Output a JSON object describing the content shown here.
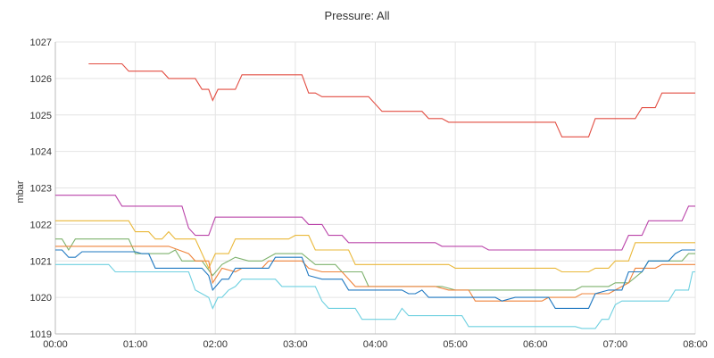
{
  "panel": {
    "title": "Pressure: All"
  },
  "chart_data": {
    "type": "line",
    "title": "Pressure: All",
    "xlabel": "",
    "ylabel": "mbar",
    "x_ticks": [
      "00:00",
      "01:00",
      "02:00",
      "03:00",
      "04:00",
      "05:00",
      "06:00",
      "07:00",
      "08:00"
    ],
    "y_ticks": [
      1019,
      1020,
      1021,
      1022,
      1023,
      1024,
      1025,
      1026,
      1027
    ],
    "xlim": [
      "00:00",
      "08:00"
    ],
    "ylim": [
      1019,
      1027
    ],
    "grid": true,
    "legend": "none",
    "series": [
      {
        "color": "#e24d42",
        "points": [
          [
            "00:25",
            1026.4
          ],
          [
            "00:50",
            1026.4
          ],
          [
            "00:55",
            1026.2
          ],
          [
            "01:20",
            1026.2
          ],
          [
            "01:25",
            1026.0
          ],
          [
            "01:45",
            1026.0
          ],
          [
            "01:50",
            1025.7
          ],
          [
            "01:55",
            1025.7
          ],
          [
            "01:58",
            1025.4
          ],
          [
            "02:02",
            1025.7
          ],
          [
            "02:15",
            1025.7
          ],
          [
            "02:20",
            1026.1
          ],
          [
            "03:05",
            1026.1
          ],
          [
            "03:10",
            1025.6
          ],
          [
            "03:15",
            1025.6
          ],
          [
            "03:20",
            1025.5
          ],
          [
            "03:40",
            1025.5
          ],
          [
            "03:55",
            1025.5
          ],
          [
            "04:05",
            1025.1
          ],
          [
            "04:35",
            1025.1
          ],
          [
            "04:40",
            1024.9
          ],
          [
            "04:50",
            1024.9
          ],
          [
            "04:55",
            1024.8
          ],
          [
            "06:15",
            1024.8
          ],
          [
            "06:20",
            1024.4
          ],
          [
            "06:40",
            1024.4
          ],
          [
            "06:45",
            1024.9
          ],
          [
            "07:15",
            1024.9
          ],
          [
            "07:20",
            1025.2
          ],
          [
            "07:30",
            1025.2
          ],
          [
            "07:35",
            1025.6
          ],
          [
            "08:00",
            1025.6
          ]
        ]
      },
      {
        "color": "#ba43a9",
        "points": [
          [
            "00:00",
            1022.8
          ],
          [
            "00:45",
            1022.8
          ],
          [
            "00:50",
            1022.5
          ],
          [
            "01:35",
            1022.5
          ],
          [
            "01:40",
            1021.9
          ],
          [
            "01:45",
            1021.7
          ],
          [
            "01:55",
            1021.7
          ],
          [
            "02:00",
            1022.2
          ],
          [
            "03:05",
            1022.2
          ],
          [
            "03:10",
            1022.0
          ],
          [
            "03:20",
            1022.0
          ],
          [
            "03:25",
            1021.7
          ],
          [
            "03:35",
            1021.7
          ],
          [
            "03:40",
            1021.5
          ],
          [
            "04:45",
            1021.5
          ],
          [
            "04:50",
            1021.4
          ],
          [
            "05:20",
            1021.4
          ],
          [
            "05:25",
            1021.3
          ],
          [
            "06:55",
            1021.3
          ],
          [
            "07:05",
            1021.3
          ],
          [
            "07:10",
            1021.7
          ],
          [
            "07:20",
            1021.7
          ],
          [
            "07:25",
            1022.1
          ],
          [
            "07:50",
            1022.1
          ],
          [
            "07:55",
            1022.5
          ],
          [
            "08:00",
            1022.5
          ]
        ]
      },
      {
        "color": "#eab839",
        "points": [
          [
            "00:00",
            1022.1
          ],
          [
            "00:55",
            1022.1
          ],
          [
            "01:00",
            1021.8
          ],
          [
            "01:10",
            1021.8
          ],
          [
            "01:15",
            1021.6
          ],
          [
            "01:20",
            1021.6
          ],
          [
            "01:25",
            1021.8
          ],
          [
            "01:30",
            1021.6
          ],
          [
            "01:45",
            1021.6
          ],
          [
            "01:55",
            1020.8
          ],
          [
            "02:00",
            1021.2
          ],
          [
            "02:10",
            1021.2
          ],
          [
            "02:15",
            1021.6
          ],
          [
            "02:55",
            1021.6
          ],
          [
            "03:00",
            1021.7
          ],
          [
            "03:10",
            1021.7
          ],
          [
            "03:15",
            1021.3
          ],
          [
            "03:40",
            1021.3
          ],
          [
            "03:45",
            1020.9
          ],
          [
            "04:55",
            1020.9
          ],
          [
            "05:00",
            1020.8
          ],
          [
            "06:15",
            1020.8
          ],
          [
            "06:20",
            1020.7
          ],
          [
            "06:40",
            1020.7
          ],
          [
            "06:45",
            1020.8
          ],
          [
            "06:55",
            1020.8
          ],
          [
            "07:00",
            1021.0
          ],
          [
            "07:10",
            1021.0
          ],
          [
            "07:15",
            1021.5
          ],
          [
            "08:00",
            1021.5
          ]
        ]
      },
      {
        "color": "#7eb26d",
        "points": [
          [
            "00:00",
            1021.6
          ],
          [
            "00:05",
            1021.6
          ],
          [
            "00:10",
            1021.3
          ],
          [
            "00:15",
            1021.6
          ],
          [
            "00:55",
            1021.6
          ],
          [
            "01:00",
            1021.2
          ],
          [
            "01:25",
            1021.2
          ],
          [
            "01:30",
            1021.3
          ],
          [
            "01:35",
            1021.0
          ],
          [
            "01:50",
            1021.0
          ],
          [
            "01:58",
            1020.6
          ],
          [
            "02:05",
            1020.9
          ],
          [
            "02:15",
            1021.1
          ],
          [
            "02:25",
            1021.0
          ],
          [
            "02:35",
            1021.0
          ],
          [
            "02:45",
            1021.2
          ],
          [
            "03:05",
            1021.2
          ],
          [
            "03:15",
            1020.9
          ],
          [
            "03:30",
            1020.9
          ],
          [
            "03:35",
            1020.7
          ],
          [
            "03:50",
            1020.7
          ],
          [
            "03:55",
            1020.3
          ],
          [
            "04:50",
            1020.3
          ],
          [
            "05:00",
            1020.2
          ],
          [
            "06:30",
            1020.2
          ],
          [
            "06:35",
            1020.3
          ],
          [
            "06:55",
            1020.3
          ],
          [
            "07:00",
            1020.4
          ],
          [
            "07:10",
            1020.4
          ],
          [
            "07:20",
            1020.7
          ],
          [
            "07:25",
            1021.0
          ],
          [
            "07:50",
            1021.0
          ],
          [
            "07:55",
            1021.2
          ],
          [
            "08:00",
            1021.2
          ]
        ]
      },
      {
        "color": "#ef843c",
        "points": [
          [
            "00:00",
            1021.4
          ],
          [
            "01:00",
            1021.4
          ],
          [
            "01:05",
            1021.4
          ],
          [
            "01:20",
            1021.4
          ],
          [
            "01:25",
            1021.4
          ],
          [
            "01:40",
            1021.2
          ],
          [
            "01:45",
            1021.0
          ],
          [
            "01:55",
            1021.0
          ],
          [
            "01:58",
            1020.4
          ],
          [
            "02:05",
            1020.8
          ],
          [
            "02:15",
            1020.7
          ],
          [
            "02:20",
            1020.8
          ],
          [
            "02:35",
            1020.8
          ],
          [
            "02:40",
            1021.0
          ],
          [
            "03:05",
            1021.0
          ],
          [
            "03:10",
            1020.8
          ],
          [
            "03:20",
            1020.7
          ],
          [
            "03:35",
            1020.7
          ],
          [
            "03:45",
            1020.3
          ],
          [
            "04:45",
            1020.3
          ],
          [
            "04:55",
            1020.2
          ],
          [
            "05:10",
            1020.2
          ],
          [
            "05:15",
            1019.9
          ],
          [
            "06:05",
            1019.9
          ],
          [
            "06:10",
            1020.0
          ],
          [
            "06:30",
            1020.0
          ],
          [
            "06:35",
            1020.1
          ],
          [
            "06:55",
            1020.1
          ],
          [
            "07:00",
            1020.2
          ],
          [
            "07:10",
            1020.4
          ],
          [
            "07:15",
            1020.8
          ],
          [
            "07:30",
            1020.8
          ],
          [
            "07:35",
            1020.9
          ],
          [
            "07:55",
            1020.9
          ],
          [
            "08:00",
            1020.9
          ]
        ]
      },
      {
        "color": "#1f78c1",
        "points": [
          [
            "00:00",
            1021.3
          ],
          [
            "00:05",
            1021.3
          ],
          [
            "00:10",
            1021.1
          ],
          [
            "00:15",
            1021.1
          ],
          [
            "00:20",
            1021.25
          ],
          [
            "01:00",
            1021.25
          ],
          [
            "01:05",
            1021.2
          ],
          [
            "01:10",
            1021.2
          ],
          [
            "01:15",
            1020.8
          ],
          [
            "01:50",
            1020.8
          ],
          [
            "01:55",
            1020.6
          ],
          [
            "01:58",
            1020.2
          ],
          [
            "02:05",
            1020.5
          ],
          [
            "02:10",
            1020.5
          ],
          [
            "02:15",
            1020.8
          ],
          [
            "02:40",
            1020.8
          ],
          [
            "02:45",
            1021.1
          ],
          [
            "03:05",
            1021.1
          ],
          [
            "03:10",
            1020.6
          ],
          [
            "03:20",
            1020.5
          ],
          [
            "03:35",
            1020.5
          ],
          [
            "03:40",
            1020.2
          ],
          [
            "04:20",
            1020.2
          ],
          [
            "04:25",
            1020.1
          ],
          [
            "04:30",
            1020.1
          ],
          [
            "04:35",
            1020.2
          ],
          [
            "04:40",
            1020.0
          ],
          [
            "05:30",
            1020.0
          ],
          [
            "05:35",
            1019.9
          ],
          [
            "05:45",
            1020.0
          ],
          [
            "06:10",
            1020.0
          ],
          [
            "06:15",
            1019.7
          ],
          [
            "06:40",
            1019.7
          ],
          [
            "06:45",
            1020.1
          ],
          [
            "06:55",
            1020.2
          ],
          [
            "07:05",
            1020.2
          ],
          [
            "07:10",
            1020.7
          ],
          [
            "07:20",
            1020.7
          ],
          [
            "07:25",
            1021.0
          ],
          [
            "07:40",
            1021.0
          ],
          [
            "07:45",
            1021.2
          ],
          [
            "07:50",
            1021.3
          ],
          [
            "08:00",
            1021.3
          ]
        ]
      },
      {
        "color": "#6ed0e0",
        "points": [
          [
            "00:00",
            1020.9
          ],
          [
            "00:40",
            1020.9
          ],
          [
            "00:45",
            1020.7
          ],
          [
            "01:40",
            1020.7
          ],
          [
            "01:45",
            1020.2
          ],
          [
            "01:50",
            1020.1
          ],
          [
            "01:55",
            1020.0
          ],
          [
            "01:58",
            1019.7
          ],
          [
            "02:02",
            1020.0
          ],
          [
            "02:05",
            1020.0
          ],
          [
            "02:10",
            1020.2
          ],
          [
            "02:15",
            1020.3
          ],
          [
            "02:20",
            1020.5
          ],
          [
            "02:45",
            1020.5
          ],
          [
            "02:50",
            1020.3
          ],
          [
            "03:15",
            1020.3
          ],
          [
            "03:20",
            1019.9
          ],
          [
            "03:25",
            1019.7
          ],
          [
            "03:45",
            1019.7
          ],
          [
            "03:50",
            1019.4
          ],
          [
            "04:15",
            1019.4
          ],
          [
            "04:20",
            1019.7
          ],
          [
            "04:25",
            1019.5
          ],
          [
            "05:05",
            1019.5
          ],
          [
            "05:10",
            1019.2
          ],
          [
            "06:25",
            1019.2
          ],
          [
            "06:30",
            1019.2
          ],
          [
            "06:35",
            1019.15
          ],
          [
            "06:45",
            1019.15
          ],
          [
            "06:50",
            1019.4
          ],
          [
            "06:55",
            1019.4
          ],
          [
            "07:00",
            1019.8
          ],
          [
            "07:05",
            1019.9
          ],
          [
            "07:40",
            1019.9
          ],
          [
            "07:45",
            1020.2
          ],
          [
            "07:55",
            1020.2
          ],
          [
            "07:58",
            1020.7
          ],
          [
            "08:00",
            1020.7
          ]
        ]
      }
    ]
  }
}
